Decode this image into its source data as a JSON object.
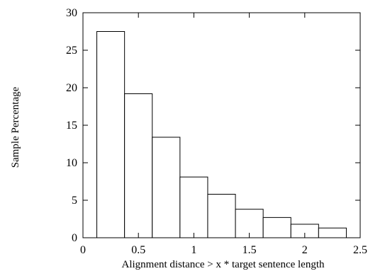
{
  "chart_data": {
    "type": "bar",
    "title": "",
    "xlabel": "Alignment distance > x * target sentence length",
    "ylabel": "Sample Percentage",
    "xlim": [
      0,
      2.5
    ],
    "ylim": [
      0,
      30
    ],
    "xticks": [
      0,
      0.5,
      1,
      1.5,
      2,
      2.5
    ],
    "xtick_labels": [
      "0",
      "0.5",
      "1",
      "1.5",
      "2",
      "2.5"
    ],
    "yticks": [
      0,
      5,
      10,
      15,
      20,
      25,
      30
    ],
    "ytick_labels": [
      "0",
      "5",
      "10",
      "15",
      "20",
      "25",
      "30"
    ],
    "grid": false,
    "bars": [
      {
        "x0": 0.125,
        "x1": 0.375,
        "value": 27.5
      },
      {
        "x0": 0.375,
        "x1": 0.625,
        "value": 19.2
      },
      {
        "x0": 0.625,
        "x1": 0.875,
        "value": 13.4
      },
      {
        "x0": 0.875,
        "x1": 1.125,
        "value": 8.1
      },
      {
        "x0": 1.125,
        "x1": 1.375,
        "value": 5.8
      },
      {
        "x0": 1.375,
        "x1": 1.625,
        "value": 3.8
      },
      {
        "x0": 1.625,
        "x1": 1.875,
        "value": 2.7
      },
      {
        "x0": 1.875,
        "x1": 2.125,
        "value": 1.8
      },
      {
        "x0": 2.125,
        "x1": 2.375,
        "value": 1.3
      }
    ],
    "colors": {
      "bar_fill": "#ffffff",
      "stroke": "#000000"
    }
  }
}
